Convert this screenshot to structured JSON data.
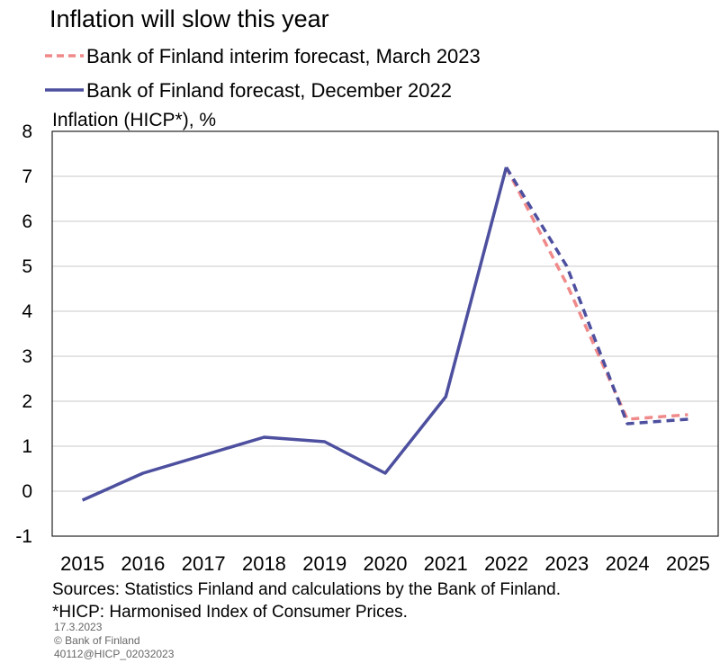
{
  "chart_data": {
    "type": "line",
    "title": "Inflation will slow this year",
    "ylabel": "Inflation (HICP*), %",
    "xlabel": "",
    "ylim": [
      -1,
      8
    ],
    "yticks": [
      -1,
      0,
      1,
      2,
      3,
      4,
      5,
      6,
      7,
      8
    ],
    "categories": [
      "2015",
      "2016",
      "2017",
      "2018",
      "2019",
      "2020",
      "2021",
      "2022",
      "2023",
      "2024",
      "2025"
    ],
    "grid": true,
    "legend_position": "top-left",
    "series": [
      {
        "name": "Bank of Finland interim forecast, March 2023",
        "color": "#f08a8a",
        "style": "dashed",
        "values": [
          null,
          null,
          null,
          null,
          null,
          null,
          null,
          7.2,
          4.6,
          1.6,
          1.7
        ]
      },
      {
        "name": "Bank of Finland forecast, December 2022",
        "color": "#4d4f9f",
        "style": "solid-then-dashed",
        "forecast_from": "2022",
        "values": [
          -0.2,
          0.4,
          0.8,
          1.2,
          1.1,
          0.4,
          2.1,
          7.2,
          5.0,
          1.5,
          1.6
        ]
      }
    ]
  },
  "footer": {
    "sources": "Sources: Statistics Finland and calculations by the Bank of Finland.",
    "note": "*HICP: Harmonised Index of Consumer Prices.",
    "date": "17.3.2023",
    "copyright": "© Bank of Finland",
    "code": "40112@HICP_02032023"
  }
}
